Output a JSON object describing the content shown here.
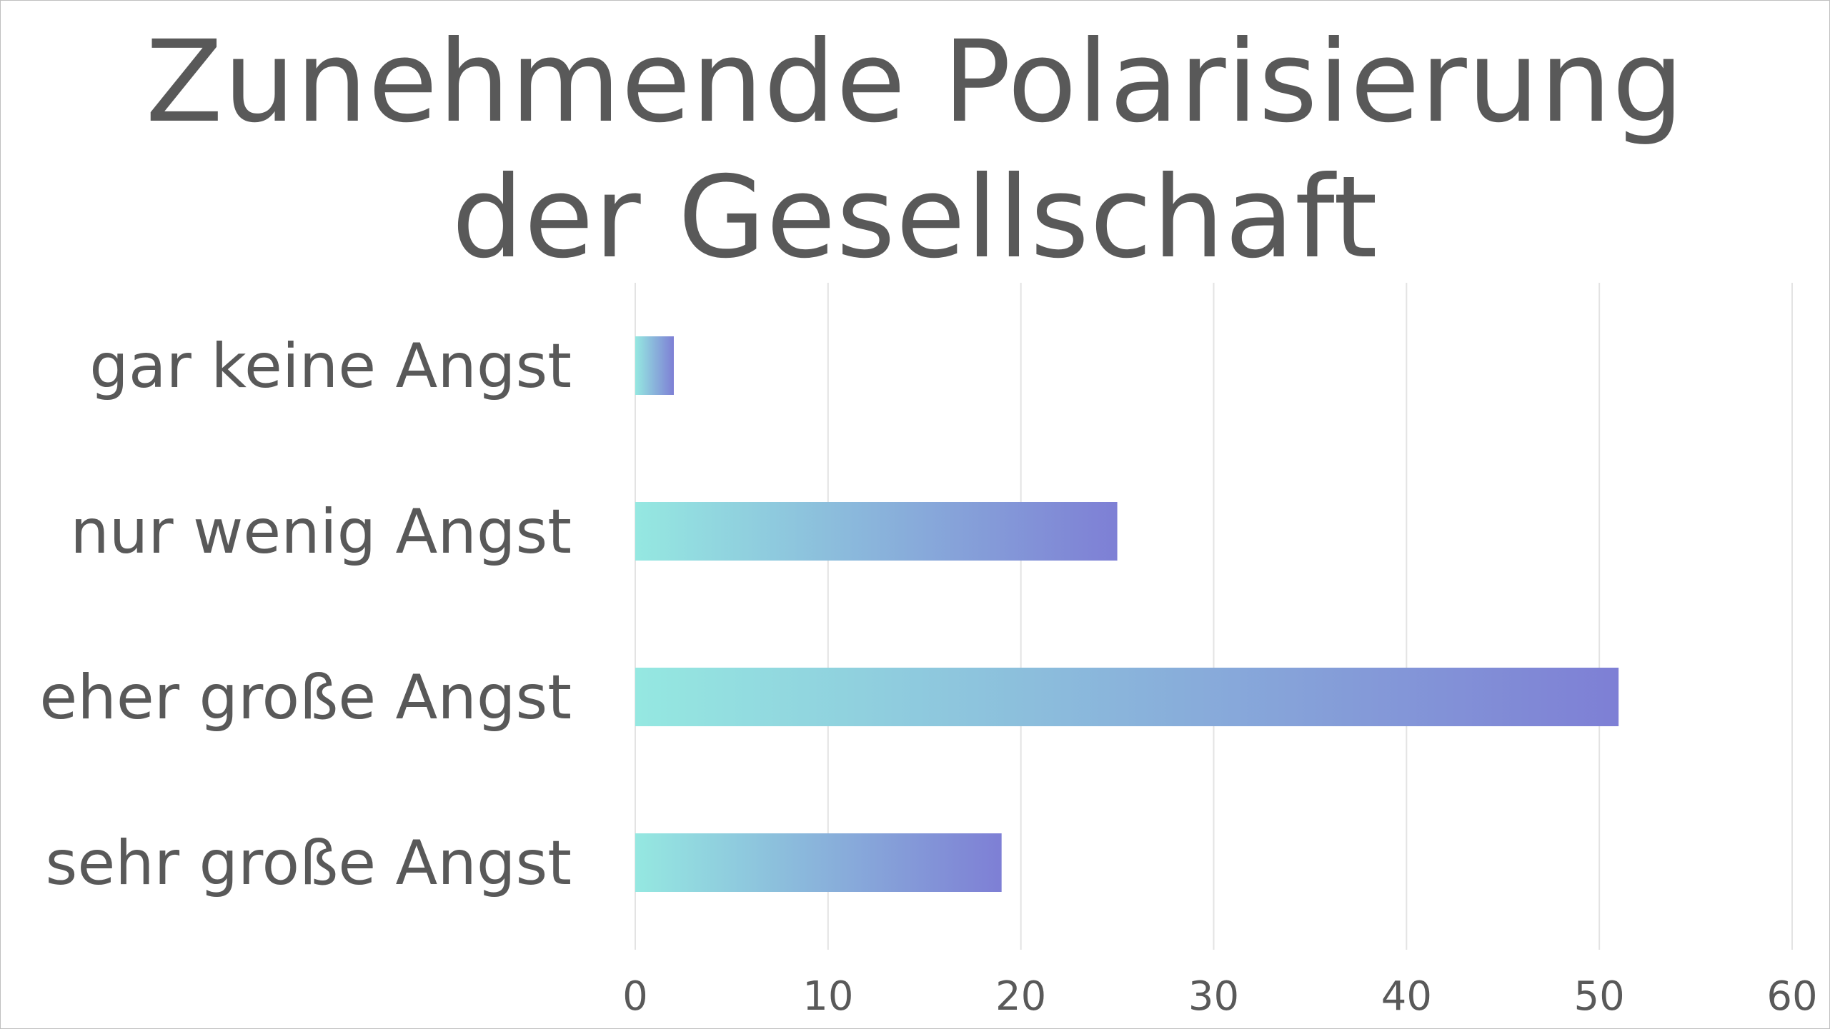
{
  "chart_data": {
    "type": "bar",
    "orientation": "horizontal",
    "title_lines": [
      "Zunehmende Polarisierung",
      "der Gesellschaft"
    ],
    "categories": [
      "gar keine Angst",
      "nur wenig Angst",
      "eher große Angst",
      "sehr große Angst"
    ],
    "values": [
      2,
      25,
      51,
      19
    ],
    "xlim": [
      0,
      60
    ],
    "xticks": [
      0,
      10,
      20,
      30,
      40,
      50,
      60
    ],
    "xlabel": "",
    "ylabel": "",
    "grid": "vertical",
    "legend": "none",
    "colors": {
      "bar_gradient_start": "#95e8e1",
      "bar_gradient_end": "#7e7fd5",
      "grid": "#e3e3e3",
      "text": "#595959"
    }
  }
}
